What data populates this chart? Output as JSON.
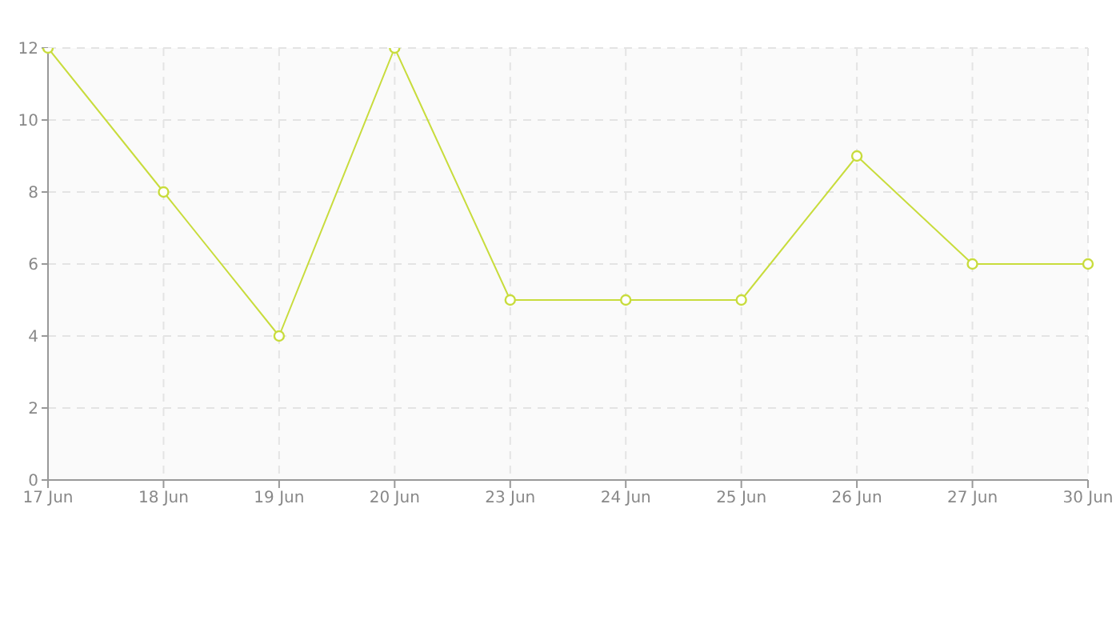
{
  "chart_data": {
    "type": "line",
    "categories": [
      "17 Jun",
      "18 Jun",
      "19 Jun",
      "20 Jun",
      "23 Jun",
      "24 Jun",
      "25 Jun",
      "26 Jun",
      "27 Jun",
      "30 Jun"
    ],
    "series": [
      {
        "color": "#c8dc3c",
        "values": [
          12,
          8,
          4,
          12,
          5,
          5,
          5,
          9,
          6,
          6
        ]
      }
    ],
    "ylim": [
      0,
      12
    ],
    "yticks": [
      0,
      2,
      4,
      6,
      8,
      10,
      12
    ],
    "grid": true,
    "marker": "circle",
    "line_style": "solid",
    "legend": false
  }
}
